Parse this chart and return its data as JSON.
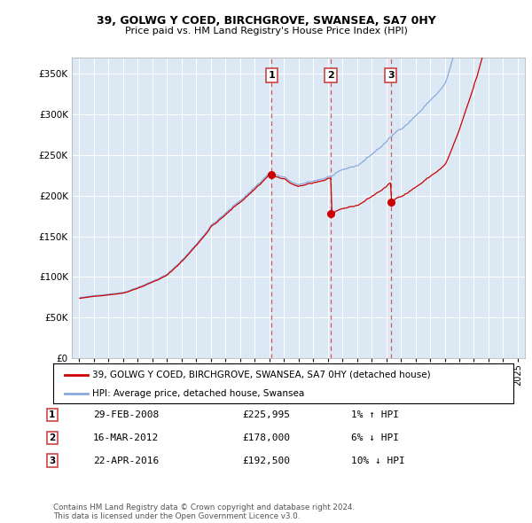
{
  "title1": "39, GOLWG Y COED, BIRCHGROVE, SWANSEA, SA7 0HY",
  "title2": "Price paid vs. HM Land Registry's House Price Index (HPI)",
  "plot_bg_color": "#dde8f5",
  "legend_line1": "39, GOLWG Y COED, BIRCHGROVE, SWANSEA, SA7 0HY (detached house)",
  "legend_line2": "HPI: Average price, detached house, Swansea",
  "sale_points": [
    {
      "num": 1,
      "date": "29-FEB-2008",
      "date_x": 2008.16,
      "price": 225995,
      "hpi_note": "1% ↑ HPI"
    },
    {
      "num": 2,
      "date": "16-MAR-2012",
      "date_x": 2012.21,
      "price": 178000,
      "hpi_note": "6% ↓ HPI"
    },
    {
      "num": 3,
      "date": "22-APR-2016",
      "date_x": 2016.31,
      "price": 192500,
      "hpi_note": "10% ↓ HPI"
    }
  ],
  "footer": "Contains HM Land Registry data © Crown copyright and database right 2024.\nThis data is licensed under the Open Government Licence v3.0.",
  "ylim": [
    0,
    370000
  ],
  "xlim": [
    1994.5,
    2025.5
  ],
  "red_color": "#cc0000",
  "blue_color": "#88aadd",
  "vline_color": "#cc4444"
}
